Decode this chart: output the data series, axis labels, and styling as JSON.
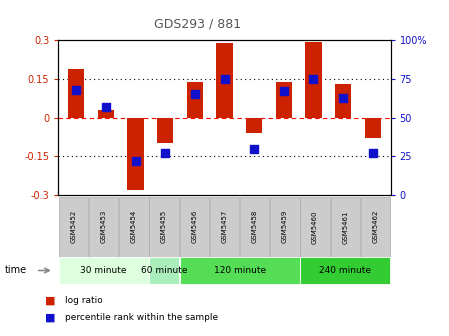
{
  "title": "GDS293 / 881",
  "categories": [
    "GSM5452",
    "GSM5453",
    "GSM5454",
    "GSM5455",
    "GSM5456",
    "GSM5457",
    "GSM5458",
    "GSM5459",
    "GSM5460",
    "GSM5461",
    "GSM5462"
  ],
  "log_ratio": [
    0.19,
    0.03,
    -0.28,
    -0.1,
    0.14,
    0.29,
    -0.06,
    0.14,
    0.295,
    0.13,
    -0.08
  ],
  "percentile": [
    68,
    57,
    22,
    27,
    65,
    75,
    30,
    67,
    75,
    63,
    27
  ],
  "ylim_left": [
    -0.3,
    0.3
  ],
  "ylim_right": [
    0,
    100
  ],
  "yticks_left": [
    -0.3,
    -0.15,
    0,
    0.15,
    0.3
  ],
  "yticks_right": [
    0,
    25,
    50,
    75,
    100
  ],
  "ytick_labels_left": [
    "-0.3",
    "-0.15",
    "0",
    "0.15",
    "0.3"
  ],
  "ytick_labels_right": [
    "0",
    "25",
    "50",
    "75",
    "100%"
  ],
  "hlines": [
    0.15,
    0,
    -0.15
  ],
  "hline_styles": [
    "dotted",
    "dashed",
    "dotted"
  ],
  "hline_colors": [
    "black",
    "red",
    "black"
  ],
  "bar_color": "#cc2200",
  "dot_color": "#1111cc",
  "time_groups": [
    {
      "label": "30 minute",
      "start": 0,
      "end": 2,
      "color": "#ddffdd"
    },
    {
      "label": "60 minute",
      "start": 3,
      "end": 3,
      "color": "#aaeebb"
    },
    {
      "label": "120 minute",
      "start": 4,
      "end": 7,
      "color": "#55dd55"
    },
    {
      "label": "240 minute",
      "start": 8,
      "end": 10,
      "color": "#33cc33"
    }
  ],
  "legend_items": [
    "log ratio",
    "percentile rank within the sample"
  ],
  "legend_colors": [
    "#cc2200",
    "#1111cc"
  ],
  "bar_width": 0.55,
  "dot_size": 28,
  "bg_color": "#ffffff",
  "plot_bg": "#ffffff",
  "tick_label_color_left": "#cc2200",
  "tick_label_color_right": "#1111cc",
  "title_color": "#555555",
  "gray_box_color": "#cccccc",
  "gray_box_edge": "#aaaaaa"
}
